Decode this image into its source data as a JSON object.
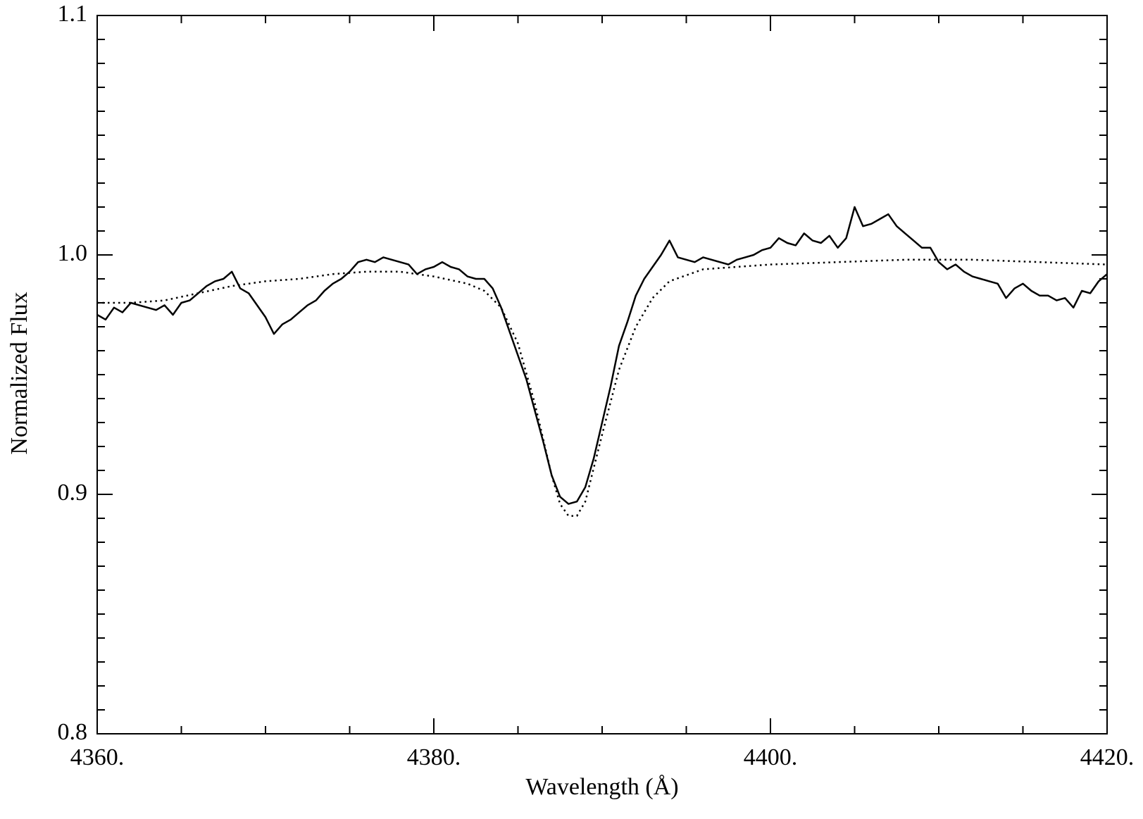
{
  "chart_data": {
    "type": "line",
    "xlabel": "Wavelength (Å)",
    "ylabel": "Normalized Flux",
    "xlim": [
      4360,
      4420
    ],
    "ylim": [
      0.8,
      1.1
    ],
    "xticks": [
      {
        "value": 4360,
        "label": "4360."
      },
      {
        "value": 4380,
        "label": "4380."
      },
      {
        "value": 4400,
        "label": "4400."
      },
      {
        "value": 4420,
        "label": "4420."
      }
    ],
    "yticks": [
      0.8,
      0.9,
      {
        "value": 1,
        "label": "1.0"
      },
      1.1
    ],
    "xminorticks": [
      4365,
      4370,
      4375,
      4385,
      4390,
      4395,
      4405,
      4410,
      4415
    ],
    "yminorticks": [
      0.81,
      0.82,
      0.83,
      0.84,
      0.85,
      0.86,
      0.87,
      0.88,
      0.89,
      0.91,
      0.92,
      0.93,
      0.94,
      0.95,
      0.96,
      0.97,
      0.98,
      0.99,
      1.01,
      1.02,
      1.03,
      1.04,
      1.05,
      1.06,
      1.07,
      1.08,
      1.09
    ],
    "series": [
      {
        "color": "#000000",
        "style": "solid",
        "x": [
          4360,
          4360.5,
          4361,
          4361.5,
          4362,
          4362.5,
          4363,
          4363.5,
          4364,
          4364.5,
          4365,
          4365.5,
          4366,
          4366.5,
          4367,
          4367.5,
          4368,
          4368.5,
          4369,
          4369.5,
          4370,
          4370.5,
          4371,
          4371.5,
          4372,
          4372.5,
          4373,
          4373.5,
          4374,
          4374.5,
          4375,
          4375.5,
          4376,
          4376.5,
          4377,
          4377.5,
          4378,
          4378.5,
          4379,
          4379.5,
          4380,
          4380.5,
          4381,
          4381.5,
          4382,
          4382.5,
          4383,
          4383.5,
          4384,
          4384.5,
          4385,
          4385.5,
          4386,
          4386.5,
          4387,
          4387.5,
          4388,
          4388.5,
          4389,
          4389.5,
          4390,
          4390.5,
          4391,
          4391.5,
          4392,
          4392.5,
          4393,
          4393.5,
          4394,
          4394.5,
          4395,
          4395.5,
          4396,
          4396.5,
          4397,
          4397.5,
          4398,
          4398.5,
          4399,
          4399.5,
          4400,
          4400.5,
          4401,
          4401.5,
          4402,
          4402.5,
          4403,
          4403.5,
          4404,
          4404.5,
          4405,
          4405.5,
          4406,
          4406.5,
          4407,
          4407.5,
          4408,
          4408.5,
          4409,
          4409.5,
          4410,
          4410.5,
          4411,
          4411.5,
          4412,
          4412.5,
          4413,
          4413.5,
          4414,
          4414.5,
          4415,
          4415.5,
          4416,
          4416.5,
          4417,
          4417.5,
          4418,
          4418.5,
          4419,
          4419.5,
          4420
        ],
        "values": [
          0.975,
          0.973,
          0.978,
          0.976,
          0.98,
          0.979,
          0.978,
          0.977,
          0.979,
          0.975,
          0.98,
          0.981,
          0.984,
          0.987,
          0.989,
          0.99,
          0.993,
          0.986,
          0.984,
          0.979,
          0.974,
          0.967,
          0.971,
          0.973,
          0.976,
          0.979,
          0.981,
          0.985,
          0.988,
          0.99,
          0.993,
          0.997,
          0.998,
          0.997,
          0.999,
          0.998,
          0.997,
          0.996,
          0.992,
          0.994,
          0.995,
          0.997,
          0.995,
          0.994,
          0.991,
          0.99,
          0.99,
          0.986,
          0.978,
          0.968,
          0.958,
          0.948,
          0.935,
          0.922,
          0.908,
          0.899,
          0.896,
          0.897,
          0.903,
          0.915,
          0.93,
          0.945,
          0.962,
          0.972,
          0.983,
          0.99,
          0.995,
          1.0,
          1.006,
          0.999,
          0.998,
          0.997,
          0.999,
          0.998,
          0.997,
          0.996,
          0.998,
          0.999,
          1.0,
          1.002,
          1.003,
          1.007,
          1.005,
          1.004,
          1.009,
          1.006,
          1.005,
          1.008,
          1.003,
          1.007,
          1.02,
          1.012,
          1.013,
          1.015,
          1.017,
          1.012,
          1.009,
          1.006,
          1.003,
          1.003,
          0.997,
          0.994,
          0.996,
          0.993,
          0.991,
          0.99,
          0.989,
          0.988,
          0.982,
          0.986,
          0.988,
          0.985,
          0.983,
          0.983,
          0.981,
          0.982,
          0.978,
          0.985,
          0.984,
          0.989,
          0.992
        ]
      },
      {
        "color": "#000000",
        "style": "dotted",
        "x": [
          4360,
          4362,
          4364,
          4366,
          4368,
          4370,
          4372,
          4374,
          4376,
          4378,
          4380,
          4382,
          4383,
          4384,
          4385,
          4386,
          4387,
          4387.5,
          4388,
          4388.5,
          4389,
          4390,
          4391,
          4392,
          4393,
          4394,
          4396,
          4398,
          4400,
          4404,
          4408,
          4412,
          4416,
          4420
        ],
        "values": [
          0.98,
          0.98,
          0.981,
          0.984,
          0.987,
          0.989,
          0.99,
          0.992,
          0.993,
          0.993,
          0.991,
          0.988,
          0.985,
          0.978,
          0.963,
          0.938,
          0.908,
          0.896,
          0.891,
          0.891,
          0.897,
          0.925,
          0.952,
          0.97,
          0.982,
          0.989,
          0.994,
          0.995,
          0.996,
          0.997,
          0.998,
          0.998,
          0.997,
          0.996
        ]
      }
    ]
  }
}
